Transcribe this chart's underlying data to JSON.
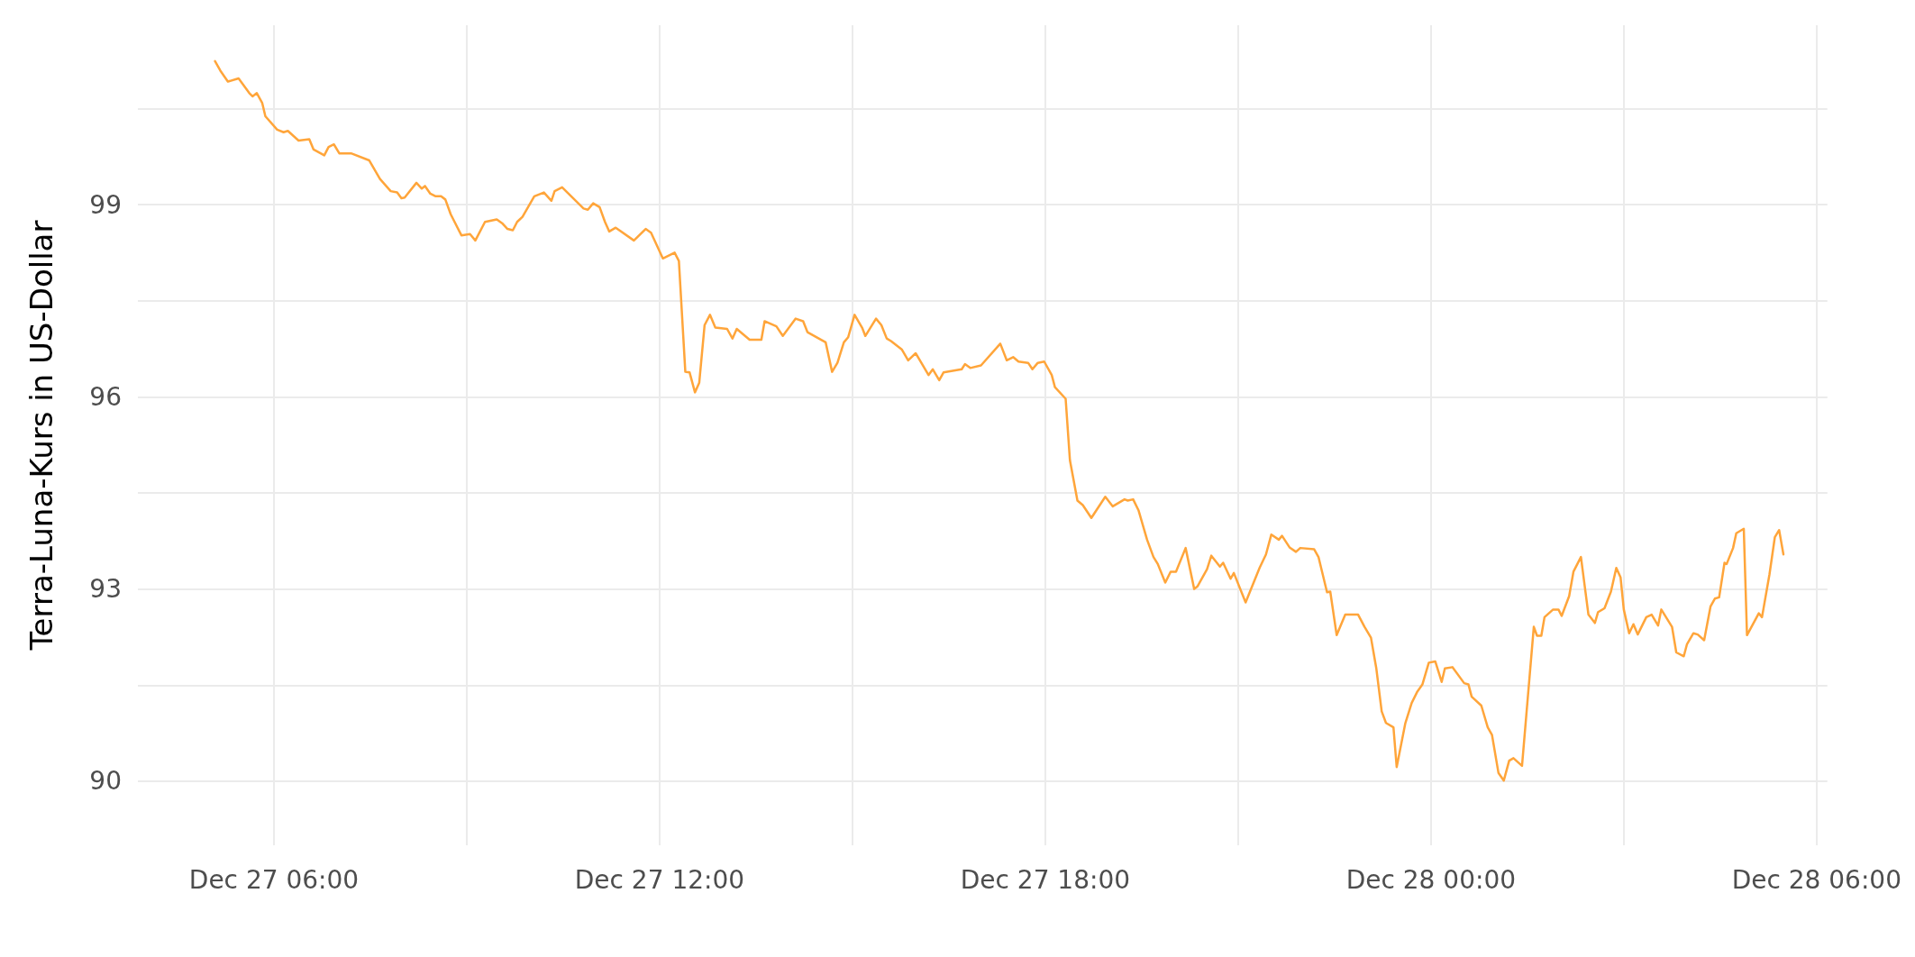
{
  "chart_data": {
    "type": "line",
    "ylabel": "Terra-Luna-Kurs in US-Dollar",
    "grid": true,
    "marker": "none",
    "line_style": "solid",
    "xlim": [
      "--12-27T03:53",
      "--12-28T06:10"
    ],
    "xticks": [
      {
        "value": "--12-27T06:00",
        "label": "Dec 27 06:00"
      },
      {
        "value": "--12-27T09:00",
        "label": null
      },
      {
        "value": "--12-27T12:00",
        "label": "Dec 27 12:00"
      },
      {
        "value": "--12-27T15:00",
        "label": null
      },
      {
        "value": "--12-27T18:00",
        "label": "Dec 27 18:00"
      },
      {
        "value": "--12-27T21:00",
        "label": null
      },
      {
        "value": "--12-28T00:00",
        "label": "Dec 28 00:00"
      },
      {
        "value": "--12-28T03:00",
        "label": null
      },
      {
        "value": "--12-28T06:00",
        "label": "Dec 28 06:00"
      }
    ],
    "ylim": [
      89.0,
      101.8
    ],
    "yticks": [
      90,
      {
        "value": 91.5,
        "label": null
      },
      93,
      {
        "value": 94.5,
        "label": null
      },
      96,
      {
        "value": 97.5,
        "label": null
      },
      99,
      {
        "value": 100.5,
        "label": null
      }
    ],
    "series": [
      {
        "color": "#ffa53a",
        "x": [
          "--12-27T05:05",
          "--12-27T05:10",
          "--12-27T05:17",
          "--12-27T05:27",
          "--12-27T05:37",
          "--12-27T05:40",
          "--12-27T05:44",
          "--12-27T05:49",
          "--12-27T05:52",
          "--12-27T06:03",
          "--12-27T06:09",
          "--12-27T06:13",
          "--12-27T06:23",
          "--12-27T06:33",
          "--12-27T06:37",
          "--12-27T06:47",
          "--12-27T06:51",
          "--12-27T06:56",
          "--12-27T07:01",
          "--12-27T07:12",
          "--12-27T07:29",
          "--12-27T07:39",
          "--12-27T07:49",
          "--12-27T07:55",
          "--12-27T07:59",
          "--12-27T08:02",
          "--12-27T08:13",
          "--12-27T08:18",
          "--12-27T08:21",
          "--12-27T08:26",
          "--12-27T08:31",
          "--12-27T08:36",
          "--12-27T08:40",
          "--12-27T08:45",
          "--12-27T08:55",
          "--12-27T09:03",
          "--12-27T09:08",
          "--12-27T09:17",
          "--12-27T09:28",
          "--12-27T09:33",
          "--12-27T09:38",
          "--12-27T09:43",
          "--12-27T09:47",
          "--12-27T09:52",
          "--12-27T10:03",
          "--12-27T10:12",
          "--12-27T10:19",
          "--12-27T10:22",
          "--12-27T10:29",
          "--12-27T10:49",
          "--12-27T10:53",
          "--12-27T10:58",
          "--12-27T11:04",
          "--12-27T11:09",
          "--12-27T11:13",
          "--12-27T11:19",
          "--12-27T11:36",
          "--12-27T11:47",
          "--12-27T11:52",
          "--12-27T12:03",
          "--12-27T12:14",
          "--12-27T12:18",
          "--12-27T12:24",
          "--12-27T12:28",
          "--12-27T12:33",
          "--12-27T12:37",
          "--12-27T12:42",
          "--12-27T12:47",
          "--12-27T12:52",
          "--12-27T13:03",
          "--12-27T13:08",
          "--12-27T13:12",
          "--12-27T13:24",
          "--12-27T13:35",
          "--12-27T13:38",
          "--12-27T13:49",
          "--12-27T13:55",
          "--12-27T14:07",
          "--12-27T14:14",
          "--12-27T14:18",
          "--12-27T14:35",
          "--12-27T14:41",
          "--12-27T14:46",
          "--12-27T14:52",
          "--12-27T14:56",
          "--12-27T15:02",
          "--12-27T15:09",
          "--12-27T15:12",
          "--12-27T15:22",
          "--12-27T15:27",
          "--12-27T15:32",
          "--12-27T15:36",
          "--12-27T15:46",
          "--12-27T15:52",
          "--12-27T15:59",
          "--12-27T16:11",
          "--12-27T16:15",
          "--12-27T16:21",
          "--12-27T16:25",
          "--12-27T16:42",
          "--12-27T16:45",
          "--12-27T16:50",
          "--12-27T17:00",
          "--12-27T17:18",
          "--12-27T17:24",
          "--12-27T17:30",
          "--12-27T17:35",
          "--12-27T17:44",
          "--12-27T17:48",
          "--12-27T17:53",
          "--12-27T17:59",
          "--12-27T18:06",
          "--12-27T18:09",
          "--12-27T18:19",
          "--12-27T18:23",
          "--12-27T18:30",
          "--12-27T18:35",
          "--12-27T18:43",
          "--12-27T18:56",
          "--12-27T19:03",
          "--12-27T19:14",
          "--12-27T19:17",
          "--12-27T19:22",
          "--12-27T19:27",
          "--12-27T19:35",
          "--12-27T19:41",
          "--12-27T19:45",
          "--12-27T19:52",
          "--12-27T19:57",
          "--12-27T20:02",
          "--12-27T20:11",
          "--12-27T20:19",
          "--12-27T20:22",
          "--12-27T20:31",
          "--12-27T20:35",
          "--12-27T20:43",
          "--12-27T20:46",
          "--12-27T20:53",
          "--12-27T20:56",
          "--12-27T21:07",
          "--12-27T21:20",
          "--12-27T21:26",
          "--12-27T21:31",
          "--12-27T21:38",
          "--12-27T21:41",
          "--12-27T21:48",
          "--12-27T21:54",
          "--12-27T21:58",
          "--12-27T22:11",
          "--12-27T22:15",
          "--12-27T22:23",
          "--12-27T22:26",
          "--12-27T22:32",
          "--12-27T22:40",
          "--12-27T22:52",
          "--12-27T22:58",
          "--12-27T23:04",
          "--12-27T23:09",
          "--12-27T23:14",
          "--12-27T23:18",
          "--12-27T23:25",
          "--12-27T23:28",
          "--12-27T23:36",
          "--12-27T23:42",
          "--12-27T23:47",
          "--12-27T23:52",
          "--12-27T23:58",
          "--12-28T00:04",
          "--12-28T00:10",
          "--12-28T00:13",
          "--12-28T00:20",
          "--12-28T00:31",
          "--12-28T00:35",
          "--12-28T00:38",
          "--12-28T00:47",
          "--12-28T00:53",
          "--12-28T00:57",
          "--12-28T01:03",
          "--12-28T01:08",
          "--12-28T01:13",
          "--12-28T01:17",
          "--12-28T01:25",
          "--12-28T01:29",
          "--12-28T01:36",
          "--12-28T01:39",
          "--12-28T01:43",
          "--12-28T01:46",
          "--12-28T01:54",
          "--12-28T01:59",
          "--12-28T02:02",
          "--12-28T02:09",
          "--12-28T02:13",
          "--12-28T02:20",
          "--12-28T02:27",
          "--12-28T02:33",
          "--12-28T02:36",
          "--12-28T02:42",
          "--12-28T02:48",
          "--12-28T02:53",
          "--12-28T02:57",
          "--12-28T03:00",
          "--12-28T03:05",
          "--12-28T03:09",
          "--12-28T03:13",
          "--12-28T03:21",
          "--12-28T03:26",
          "--12-28T03:32",
          "--12-28T03:35",
          "--12-28T03:45",
          "--12-28T03:49",
          "--12-28T03:56",
          "--12-28T03:59",
          "--12-28T04:05",
          "--12-28T04:09",
          "--12-28T04:15",
          "--12-28T04:21",
          "--12-28T04:25",
          "--12-28T04:29",
          "--12-28T04:34",
          "--12-28T04:36",
          "--12-28T04:42",
          "--12-28T04:45",
          "--12-28T04:52",
          "--12-28T04:55",
          "--12-28T05:06",
          "--12-28T05:09",
          "--12-28T05:16",
          "--12-28T05:21",
          "--12-28T05:25",
          "--12-28T05:29"
        ],
        "values": [
          101.24,
          101.09,
          100.92,
          100.97,
          100.74,
          100.69,
          100.74,
          100.59,
          100.38,
          100.17,
          100.13,
          100.15,
          100.0,
          100.02,
          99.86,
          99.77,
          99.9,
          99.94,
          99.8,
          99.8,
          99.69,
          99.4,
          99.21,
          99.19,
          99.1,
          99.11,
          99.34,
          99.25,
          99.29,
          99.17,
          99.13,
          99.13,
          99.08,
          98.85,
          98.52,
          98.54,
          98.44,
          98.73,
          98.77,
          98.71,
          98.62,
          98.6,
          98.73,
          98.81,
          99.13,
          99.19,
          99.06,
          99.21,
          99.27,
          98.94,
          98.92,
          99.02,
          98.96,
          98.73,
          98.58,
          98.64,
          98.44,
          98.62,
          98.56,
          98.16,
          98.25,
          98.12,
          96.39,
          96.38,
          96.07,
          96.22,
          97.12,
          97.28,
          97.08,
          97.06,
          96.91,
          97.06,
          96.89,
          96.89,
          97.18,
          97.1,
          96.95,
          97.22,
          97.18,
          97.01,
          96.85,
          96.39,
          96.53,
          96.85,
          96.93,
          97.28,
          97.08,
          96.95,
          97.22,
          97.12,
          96.91,
          96.87,
          96.74,
          96.57,
          96.68,
          96.34,
          96.43,
          96.26,
          96.38,
          96.43,
          96.51,
          96.45,
          96.49,
          96.83,
          96.57,
          96.62,
          96.55,
          96.53,
          96.43,
          96.53,
          96.55,
          96.34,
          96.15,
          95.97,
          95.01,
          94.38,
          94.31,
          94.11,
          94.44,
          94.29,
          94.4,
          94.38,
          94.4,
          94.23,
          93.77,
          93.5,
          93.39,
          93.1,
          93.27,
          93.27,
          93.64,
          93.0,
          93.04,
          93.31,
          93.52,
          93.35,
          93.41,
          93.16,
          93.25,
          92.79,
          93.33,
          93.54,
          93.85,
          93.77,
          93.83,
          93.65,
          93.58,
          93.64,
          93.62,
          93.5,
          92.95,
          92.96,
          92.28,
          92.6,
          92.6,
          92.41,
          92.24,
          91.76,
          91.09,
          90.91,
          90.84,
          90.22,
          90.9,
          91.22,
          91.39,
          91.51,
          91.85,
          91.87,
          91.55,
          91.76,
          91.78,
          91.53,
          91.51,
          91.32,
          91.18,
          90.84,
          90.72,
          90.13,
          90.01,
          90.32,
          90.36,
          90.24,
          91.03,
          92.41,
          92.27,
          92.27,
          92.56,
          92.68,
          92.68,
          92.58,
          92.89,
          93.27,
          93.5,
          92.6,
          92.47,
          92.64,
          92.7,
          92.96,
          93.33,
          93.18,
          92.68,
          92.31,
          92.45,
          92.29,
          92.56,
          92.6,
          92.43,
          92.68,
          92.41,
          92.01,
          91.95,
          92.14,
          92.31,
          92.29,
          92.2,
          92.73,
          92.85,
          92.87,
          93.41,
          93.39,
          93.64,
          93.87,
          93.94,
          92.28,
          92.62,
          92.56,
          93.23,
          93.81,
          93.92,
          93.54
        ]
      }
    ]
  }
}
